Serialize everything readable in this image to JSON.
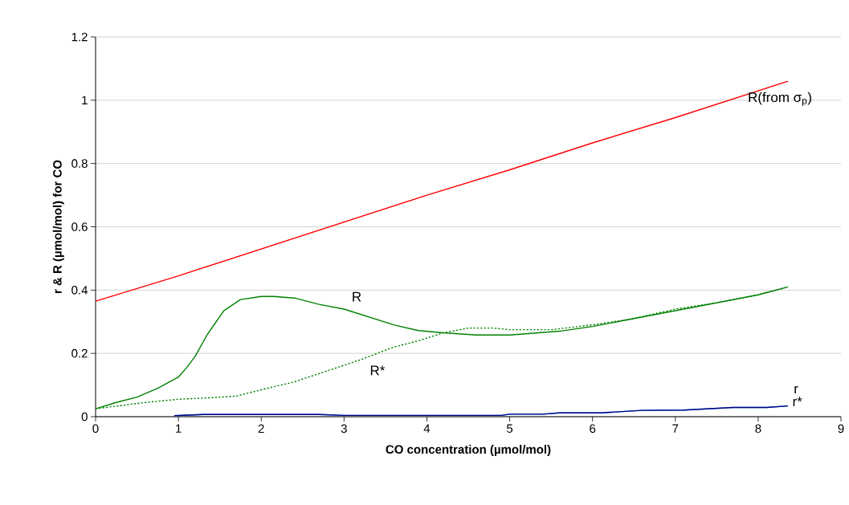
{
  "chart_data": {
    "type": "line",
    "xlabel": "CO concentration (µmol/mol)",
    "ylabel": "r & R (µmol/mol) for CO",
    "xlim": [
      0,
      9
    ],
    "xticks": [
      0,
      1,
      2,
      3,
      4,
      5,
      6,
      7,
      8,
      9
    ],
    "ylim": [
      0,
      1.2
    ],
    "yticks": [
      0,
      0.2,
      0.4,
      0.6,
      0.8,
      1,
      1.2
    ],
    "grid": "y",
    "marker": "none",
    "series": [
      {
        "name": "R(from σ$_{p}$)",
        "color": "#ff0000",
        "line_style": "solid",
        "x": [
          0,
          1,
          2,
          3,
          4,
          5,
          6,
          7,
          8.36
        ],
        "values": [
          0.365,
          0.445,
          0.53,
          0.615,
          0.7,
          0.78,
          0.865,
          0.945,
          1.06
        ]
      },
      {
        "name": "R",
        "color": "#008000",
        "line_style": "solid",
        "x": [
          0,
          0.25,
          0.5,
          0.75,
          1,
          1.1,
          1.2,
          1.35,
          1.55,
          1.75,
          2,
          2.15,
          2.4,
          2.7,
          3,
          3.3,
          3.6,
          3.9,
          4.2,
          4.6,
          5,
          5.6,
          6,
          6.5,
          7,
          7.5,
          8,
          8.36
        ],
        "values": [
          0.025,
          0.045,
          0.062,
          0.09,
          0.125,
          0.155,
          0.19,
          0.26,
          0.335,
          0.37,
          0.38,
          0.38,
          0.375,
          0.355,
          0.34,
          0.315,
          0.29,
          0.272,
          0.265,
          0.258,
          0.258,
          0.27,
          0.285,
          0.31,
          0.335,
          0.36,
          0.385,
          0.41
        ]
      },
      {
        "name": "R*",
        "color": "#008000",
        "line_style": "dotted",
        "x": [
          0,
          0.3,
          0.6,
          1,
          1.4,
          1.7,
          2,
          2.4,
          2.8,
          3.2,
          3.6,
          3.9,
          4.2,
          4.5,
          4.8,
          5,
          5.5,
          6,
          6.5,
          7,
          7.5,
          8,
          8.36
        ],
        "values": [
          0.025,
          0.035,
          0.045,
          0.055,
          0.06,
          0.065,
          0.085,
          0.11,
          0.145,
          0.18,
          0.22,
          0.24,
          0.265,
          0.28,
          0.28,
          0.275,
          0.275,
          0.29,
          0.31,
          0.34,
          0.36,
          0.385,
          0.41
        ]
      },
      {
        "name": "r*",
        "color": "#3399ff",
        "line_style": "solid",
        "x": [
          0.95,
          1.3,
          2.7,
          3.0,
          4.9,
          5.0,
          5.4,
          5.6,
          6.1,
          6.6,
          7.1,
          7.7,
          8.1,
          8.36
        ],
        "values": [
          0.003,
          0.007,
          0.007,
          0.004,
          0.004,
          0.008,
          0.008,
          0.012,
          0.012,
          0.02,
          0.021,
          0.029,
          0.029,
          0.034
        ]
      },
      {
        "name": "r",
        "color": "#000080",
        "line_style": "solid",
        "x": [
          0.95,
          1.3,
          2.7,
          3.0,
          4.9,
          5.0,
          5.4,
          5.6,
          6.1,
          6.6,
          7.1,
          7.7,
          8.1,
          8.36
        ],
        "values": [
          0.003,
          0.007,
          0.007,
          0.004,
          0.004,
          0.008,
          0.008,
          0.012,
          0.012,
          0.02,
          0.021,
          0.029,
          0.029,
          0.034
        ]
      }
    ]
  }
}
